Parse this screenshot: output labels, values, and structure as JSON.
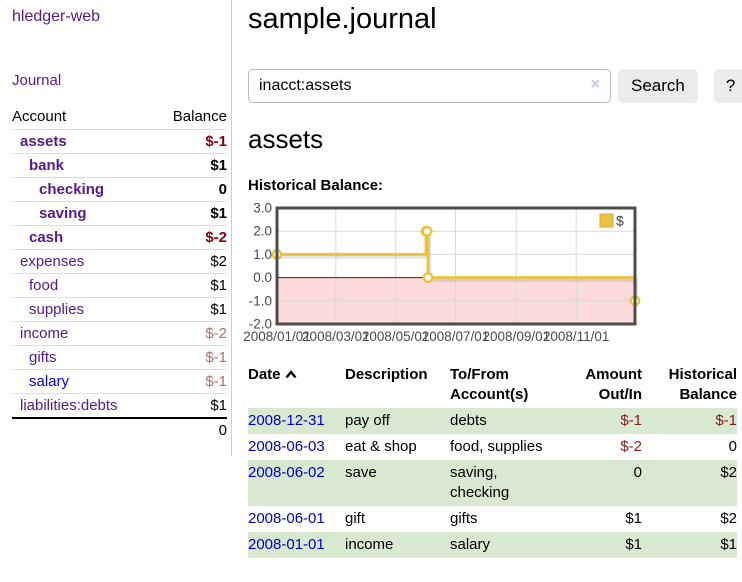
{
  "app": {
    "title": "hledger-web"
  },
  "sidebar": {
    "journal_link": "Journal",
    "table": {
      "account_header": "Account",
      "balance_header": "Balance",
      "rows": [
        {
          "account": "assets",
          "balance": "$-1",
          "level": 1,
          "bold": true,
          "negative": true,
          "muted": false,
          "unvisited": false
        },
        {
          "account": "bank",
          "balance": "$1",
          "level": 2,
          "bold": true,
          "negative": false,
          "muted": false,
          "unvisited": false
        },
        {
          "account": "checking",
          "balance": "0",
          "level": 3,
          "bold": true,
          "negative": false,
          "muted": false,
          "unvisited": false
        },
        {
          "account": "saving",
          "balance": "$1",
          "level": 3,
          "bold": true,
          "negative": false,
          "muted": false,
          "unvisited": false
        },
        {
          "account": "cash",
          "balance": "$-2",
          "level": 2,
          "bold": true,
          "negative": true,
          "muted": false,
          "unvisited": false
        },
        {
          "account": "expenses",
          "balance": "$2",
          "level": 1,
          "bold": false,
          "negative": false,
          "muted": false,
          "unvisited": false
        },
        {
          "account": "food",
          "balance": "$1",
          "level": 2,
          "bold": false,
          "negative": false,
          "muted": false,
          "unvisited": false
        },
        {
          "account": "supplies",
          "balance": "$1",
          "level": 2,
          "bold": false,
          "negative": false,
          "muted": false,
          "unvisited": false
        },
        {
          "account": "income",
          "balance": "$-2",
          "level": 1,
          "bold": false,
          "negative": true,
          "muted": true,
          "unvisited": false
        },
        {
          "account": "gifts",
          "balance": "$-1",
          "level": 2,
          "bold": false,
          "negative": true,
          "muted": true,
          "unvisited": false
        },
        {
          "account": "salary",
          "balance": "$-1",
          "level": 2,
          "bold": false,
          "negative": true,
          "muted": true,
          "unvisited": true
        },
        {
          "account": "liabilities:debts",
          "balance": "$1",
          "level": 1,
          "bold": false,
          "negative": false,
          "muted": false,
          "unvisited": false
        }
      ],
      "total": "0"
    }
  },
  "header": {
    "title": "sample.journal"
  },
  "search": {
    "value": "inacct:assets",
    "button_label": "Search",
    "help_label": "?"
  },
  "icons": {
    "clear_search": "×",
    "sort_ascending": "chevron-up"
  },
  "main": {
    "account_title": "assets",
    "chart_label": "Historical Balance:"
  },
  "chart_data": {
    "type": "line",
    "title": "Historical Balance",
    "step": true,
    "series": [
      {
        "name": "$",
        "color": "#edc240",
        "points": [
          {
            "date": "2008-01-01",
            "value": 1
          },
          {
            "date": "2008-06-01",
            "value": 2
          },
          {
            "date": "2008-06-02",
            "value": 2
          },
          {
            "date": "2008-06-03",
            "value": 0
          },
          {
            "date": "2008-12-31",
            "value": -1
          }
        ]
      }
    ],
    "x_ticks": [
      "2008/01/01",
      "2008/03/01",
      "2008/05/01",
      "2008/07/01",
      "2008/09/01",
      "2008/11/01"
    ],
    "y_ticks": [
      "3.0",
      "2.0",
      "1.0",
      "0.0",
      "-1.0",
      "-2.0"
    ],
    "ylim": [
      -2,
      3
    ],
    "grid": true,
    "legend": "$",
    "legend_position": "top-right",
    "negative_region_fill": "#fbdada",
    "zero_line_color": "#8b0000",
    "grid_color": "#d9d9d9",
    "border_color": "#4d4d4d",
    "tick_label_color": "#4a4a4a"
  },
  "register": {
    "columns": [
      {
        "label": "Date"
      },
      {
        "label": "Description"
      },
      {
        "label": "To/From Account(s)"
      },
      {
        "label": "Amount Out/In"
      },
      {
        "label": "Historical Balance"
      }
    ],
    "rows": [
      {
        "date": "2008-12-31",
        "description": "pay off",
        "accounts": "debts",
        "amount": "$-1",
        "amount_negative": true,
        "balance": "$-1",
        "balance_negative": true
      },
      {
        "date": "2008-06-03",
        "description": "eat & shop",
        "accounts": "food, supplies",
        "amount": "$-2",
        "amount_negative": true,
        "balance": "0",
        "balance_negative": false
      },
      {
        "date": "2008-06-02",
        "description": "save",
        "accounts": "saving, checking",
        "amount": "0",
        "amount_negative": false,
        "balance": "$2",
        "balance_negative": false
      },
      {
        "date": "2008-06-01",
        "description": "gift",
        "accounts": "gifts",
        "amount": "$1",
        "amount_negative": false,
        "balance": "$2",
        "balance_negative": false
      },
      {
        "date": "2008-01-01",
        "description": "income",
        "accounts": "salary",
        "amount": "$1",
        "amount_negative": false,
        "balance": "$1",
        "balance_negative": false
      }
    ]
  }
}
